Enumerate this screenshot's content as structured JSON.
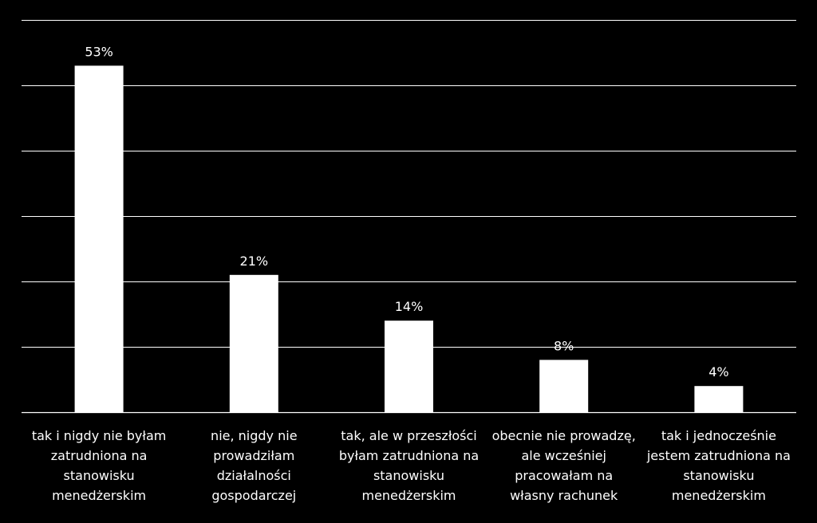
{
  "chart_data": {
    "type": "bar",
    "title": "",
    "xlabel": "",
    "ylabel": "",
    "ylim": [
      0,
      60
    ],
    "grid": true,
    "legend": "none",
    "categories": [
      [
        "tak i nigdy nie byłam",
        "zatrudniona na",
        "stanowisku",
        "menedżerskim"
      ],
      [
        "nie, nigdy nie",
        "prowadziłam",
        "działalności",
        "gospodarczej"
      ],
      [
        "tak, ale w przeszłości",
        "byłam zatrudniona na",
        "stanowisku",
        "menedżerskim"
      ],
      [
        "obecnie nie prowadzę,",
        "ale wcześniej",
        "pracowałam na",
        "własny rachunek"
      ],
      [
        "tak i jednocześnie",
        "jestem zatrudniona na",
        "stanowisku",
        "menedżerskim"
      ]
    ],
    "values": [
      53,
      21,
      14,
      8,
      4
    ],
    "data_labels": [
      "53%",
      "21%",
      "14%",
      "8%",
      "4%"
    ],
    "colors": {
      "background": "#000000",
      "bar": "#ffffff",
      "grid": "#ffffff",
      "text": "#ffffff"
    }
  }
}
